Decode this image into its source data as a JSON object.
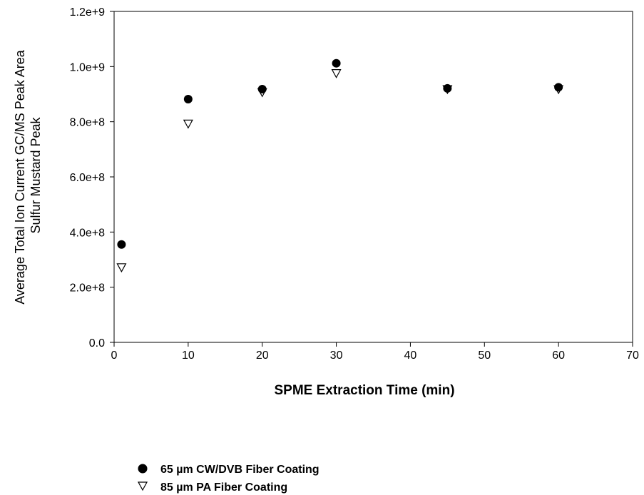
{
  "chart_data": {
    "type": "scatter",
    "xlabel": "SPME Extraction Time (min)",
    "ylabel": [
      "Average Total Ion Current GC/MS Peak Area",
      "Sulfur Mustard Peak"
    ],
    "xlim": [
      0,
      70
    ],
    "ylim": [
      0,
      1200000000
    ],
    "x_ticks": [
      0,
      10,
      20,
      30,
      40,
      50,
      60,
      70
    ],
    "x_tick_labels": [
      "0",
      "10",
      "20",
      "30",
      "40",
      "50",
      "60",
      "70"
    ],
    "y_ticks": [
      0,
      200000000,
      400000000,
      600000000,
      800000000,
      1000000000,
      1200000000
    ],
    "y_tick_labels": [
      "0.0",
      "2.0e+8",
      "4.0e+8",
      "6.0e+8",
      "8.0e+8",
      "1.0e+9",
      "1.2e+9"
    ],
    "grid": false,
    "legend_position": "bottom-left",
    "series": [
      {
        "name": "65 µm CW/DVB Fiber Coating",
        "marker": "filled-circle",
        "color": "#000000",
        "x": [
          1,
          10,
          20,
          30,
          45,
          60
        ],
        "y": [
          355000000,
          882000000,
          918000000,
          1012000000,
          921000000,
          925000000
        ]
      },
      {
        "name": "85 µm PA Fiber Coating",
        "marker": "open-triangle-down",
        "color": "#000000",
        "x": [
          1,
          10,
          20,
          30,
          45,
          60
        ],
        "y": [
          272000000,
          793000000,
          907000000,
          976000000,
          918000000,
          918000000
        ]
      }
    ]
  }
}
